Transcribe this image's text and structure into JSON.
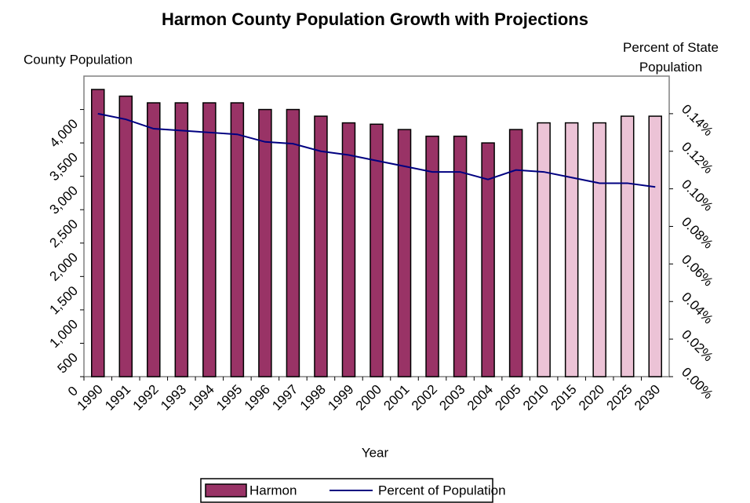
{
  "chart_data": {
    "type": "bar_line",
    "title": "Harmon County Population Growth with Projections",
    "y_label": "County Population",
    "y2_label": "Percent of State Population",
    "x_label": "Year",
    "categories": [
      "1990",
      "1991",
      "1992",
      "1993",
      "1994",
      "1995",
      "1996",
      "1997",
      "1998",
      "1999",
      "2000",
      "2001",
      "2002",
      "2003",
      "2004",
      "2005",
      "2010",
      "2015",
      "2020",
      "2025",
      "2030"
    ],
    "series": [
      {
        "name": "Harmon",
        "type": "bar",
        "color": "#993366",
        "colors": [
          "#993366",
          "#993366",
          "#993366",
          "#993366",
          "#993366",
          "#993366",
          "#993366",
          "#993366",
          "#993366",
          "#993366",
          "#993366",
          "#993366",
          "#993366",
          "#993366",
          "#993366",
          "#993366",
          "#ecc3d6",
          "#ecc3d6",
          "#ecc3d6",
          "#ecc3d6",
          "#ecc3d6"
        ],
        "values": [
          4300,
          4200,
          4100,
          4100,
          4100,
          4100,
          4000,
          4000,
          3900,
          3800,
          3780,
          3700,
          3600,
          3600,
          3500,
          3700,
          3800,
          3800,
          3800,
          3900,
          3900
        ]
      },
      {
        "name": "Percent of Population",
        "type": "line",
        "color": "#000080",
        "axis": "y2",
        "values": [
          0.14,
          0.137,
          0.132,
          0.131,
          0.13,
          0.129,
          0.125,
          0.124,
          0.12,
          0.118,
          0.115,
          0.112,
          0.109,
          0.109,
          0.105,
          0.11,
          0.109,
          0.106,
          0.103,
          0.103,
          0.101
        ]
      }
    ],
    "ylim": [
      0,
      4500
    ],
    "yticks": [
      0,
      500,
      {
        "value": 1000,
        "label": "1,000"
      },
      {
        "value": 1500,
        "label": "1,500"
      },
      {
        "value": 2000,
        "label": "2,000"
      },
      {
        "value": 2500,
        "label": "2,500"
      },
      {
        "value": 3000,
        "label": "3,000"
      },
      {
        "value": 3500,
        "label": "3,500"
      },
      {
        "value": 4000,
        "label": "4,000"
      }
    ],
    "y2lim": [
      0,
      0.16
    ],
    "y2ticks": [
      {
        "value": 0,
        "label": "0.00%"
      },
      {
        "value": 0.02,
        "label": "0.02%"
      },
      {
        "value": 0.04,
        "label": "0.04%"
      },
      {
        "value": 0.06,
        "label": "0.06%"
      },
      {
        "value": 0.08,
        "label": "0.08%"
      },
      {
        "value": 0.1,
        "label": "0.10%"
      },
      {
        "value": 0.12,
        "label": "0.12%"
      },
      {
        "value": 0.14,
        "label": "0.14%"
      }
    ],
    "legend": "bottom"
  }
}
